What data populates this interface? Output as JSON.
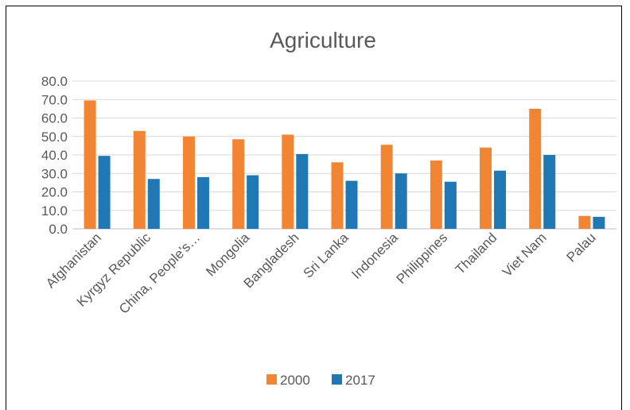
{
  "chart_data": {
    "type": "bar",
    "title": "Agriculture",
    "categories": [
      "Afghanistan",
      "Kyrgyz Republic",
      "China, People's…",
      "Mongolia",
      "Bangladesh",
      "Sri Lanka",
      "Indonesia",
      "Philippines",
      "Thailand",
      "Viet Nam",
      "Palau"
    ],
    "series": [
      {
        "name": "2000",
        "color": "#f28533",
        "values": [
          69.5,
          53.0,
          50.0,
          48.5,
          51.0,
          36.0,
          45.5,
          37.0,
          44.0,
          65.0,
          7.0
        ]
      },
      {
        "name": "2017",
        "color": "#1f78b4",
        "values": [
          39.5,
          27.0,
          28.0,
          29.0,
          40.5,
          26.0,
          30.0,
          25.5,
          31.5,
          40.0,
          6.5
        ]
      }
    ],
    "y_ticks": [
      "0.0",
      "10.0",
      "20.0",
      "30.0",
      "40.0",
      "50.0",
      "60.0",
      "70.0",
      "80.0"
    ],
    "ylim": [
      0,
      80
    ],
    "grid": true,
    "legend_position": "bottom"
  }
}
